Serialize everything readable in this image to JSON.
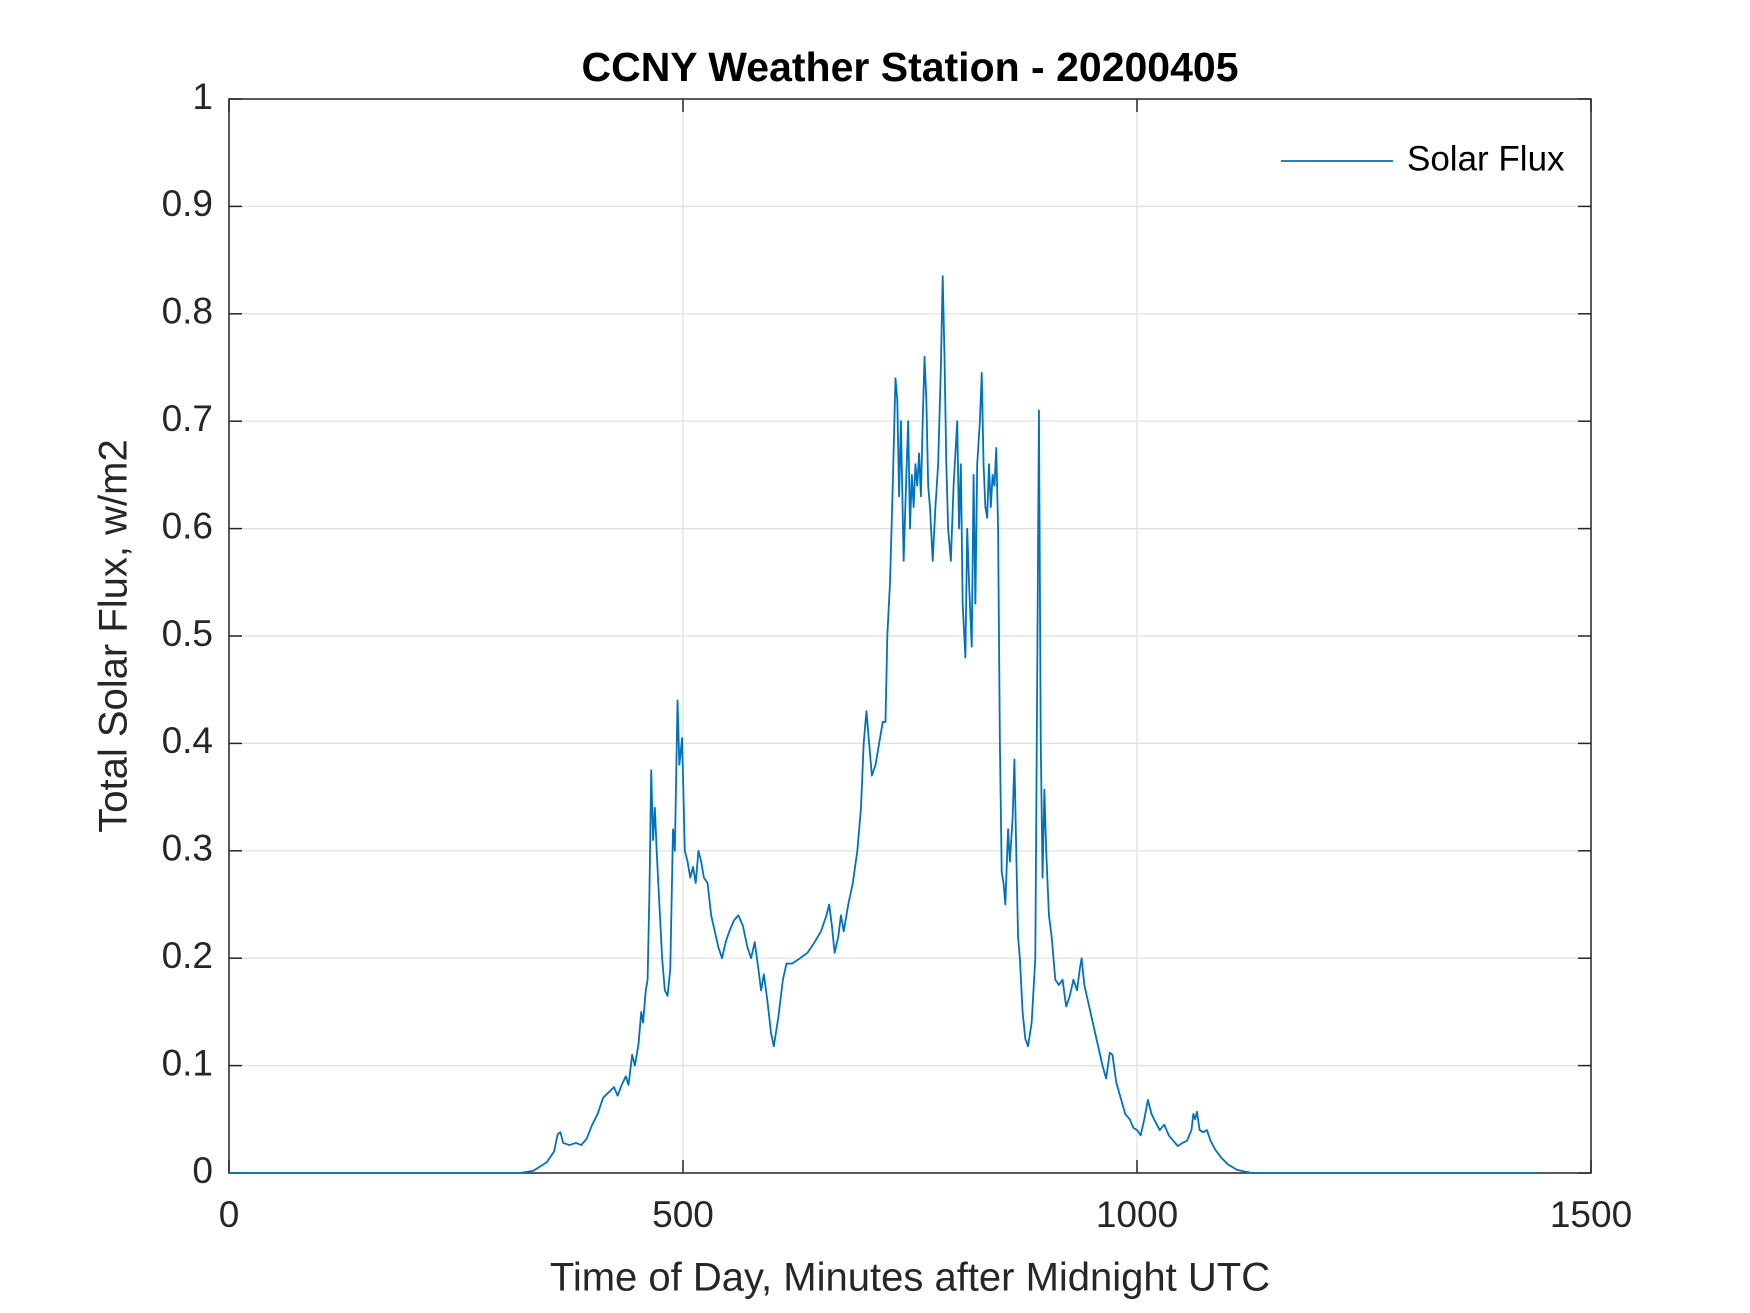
{
  "chart_data": {
    "type": "line",
    "title": "CCNY Weather Station - 20200405",
    "x_label": "Time of Day, Minutes after Midnight UTC",
    "y_label": "Total Solar Flux, w/m2",
    "x": [
      0,
      320,
      335,
      350,
      358,
      362,
      365,
      368,
      375,
      382,
      388,
      394,
      400,
      406,
      412,
      418,
      424,
      428,
      433,
      437,
      440,
      444,
      447,
      451,
      454,
      456,
      459,
      461,
      463,
      465,
      467,
      469,
      471,
      474,
      477,
      480,
      483,
      486,
      489,
      491,
      494,
      496,
      499,
      502,
      505,
      508,
      511,
      514,
      517,
      520,
      523,
      527,
      531,
      535,
      539,
      543,
      547,
      551,
      556,
      561,
      566,
      571,
      575,
      579,
      583,
      586,
      589,
      593,
      597,
      600,
      605,
      610,
      614,
      620,
      629,
      637,
      645,
      652,
      658,
      661,
      664,
      667,
      671,
      674,
      677,
      682,
      687,
      692,
      696,
      699,
      702,
      705,
      708,
      712,
      716,
      720,
      723,
      725,
      728,
      731,
      734,
      736,
      738,
      740,
      743,
      746,
      748,
      750,
      752,
      754,
      756,
      758,
      760,
      762,
      764,
      766,
      768,
      770,
      772,
      775,
      778,
      781,
      784,
      786,
      788,
      790,
      792,
      795,
      798,
      800,
      802,
      804,
      806,
      808,
      811,
      813,
      815,
      818,
      820,
      822,
      824,
      827,
      829,
      831,
      833,
      835,
      837,
      839,
      841,
      843,
      845,
      847,
      849,
      851,
      853,
      855,
      858,
      860,
      863,
      865,
      867,
      869,
      871,
      874,
      877,
      880,
      884,
      888,
      890,
      892,
      894,
      896,
      898,
      900,
      903,
      906,
      910,
      914,
      918,
      922,
      926,
      930,
      934,
      937,
      939,
      942,
      946,
      950,
      954,
      958,
      962,
      966,
      970,
      973,
      977,
      982,
      987,
      992,
      996,
      1000,
      1004,
      1008,
      1012,
      1016,
      1020,
      1025,
      1030,
      1035,
      1040,
      1045,
      1050,
      1055,
      1060,
      1062,
      1064,
      1066,
      1069,
      1073,
      1077,
      1081,
      1086,
      1092,
      1100,
      1110,
      1120,
      1127,
      1440
    ],
    "series": [
      {
        "name": "Solar Flux",
        "color": "#0072bd",
        "values": [
          0,
          0,
          0.002,
          0.01,
          0.02,
          0.036,
          0.038,
          0.028,
          0.026,
          0.028,
          0.026,
          0.032,
          0.045,
          0.055,
          0.07,
          0.075,
          0.08,
          0.072,
          0.083,
          0.09,
          0.082,
          0.11,
          0.1,
          0.12,
          0.15,
          0.14,
          0.17,
          0.18,
          0.26,
          0.375,
          0.31,
          0.34,
          0.3,
          0.25,
          0.2,
          0.17,
          0.165,
          0.19,
          0.32,
          0.3,
          0.44,
          0.38,
          0.405,
          0.3,
          0.29,
          0.275,
          0.285,
          0.27,
          0.3,
          0.29,
          0.275,
          0.27,
          0.24,
          0.225,
          0.21,
          0.2,
          0.215,
          0.225,
          0.235,
          0.24,
          0.23,
          0.21,
          0.2,
          0.215,
          0.19,
          0.17,
          0.185,
          0.16,
          0.13,
          0.118,
          0.145,
          0.18,
          0.195,
          0.195,
          0.2,
          0.205,
          0.215,
          0.225,
          0.24,
          0.25,
          0.23,
          0.205,
          0.22,
          0.24,
          0.225,
          0.25,
          0.27,
          0.3,
          0.34,
          0.4,
          0.43,
          0.4,
          0.37,
          0.38,
          0.4,
          0.42,
          0.42,
          0.5,
          0.55,
          0.64,
          0.74,
          0.72,
          0.63,
          0.7,
          0.57,
          0.65,
          0.7,
          0.6,
          0.65,
          0.62,
          0.66,
          0.64,
          0.67,
          0.63,
          0.7,
          0.76,
          0.72,
          0.64,
          0.62,
          0.57,
          0.62,
          0.66,
          0.75,
          0.835,
          0.76,
          0.66,
          0.6,
          0.57,
          0.64,
          0.67,
          0.7,
          0.6,
          0.66,
          0.53,
          0.48,
          0.6,
          0.55,
          0.49,
          0.65,
          0.53,
          0.66,
          0.7,
          0.745,
          0.66,
          0.62,
          0.61,
          0.66,
          0.62,
          0.65,
          0.64,
          0.675,
          0.6,
          0.4,
          0.28,
          0.27,
          0.25,
          0.32,
          0.29,
          0.33,
          0.385,
          0.3,
          0.22,
          0.2,
          0.15,
          0.125,
          0.118,
          0.14,
          0.2,
          0.45,
          0.71,
          0.4,
          0.275,
          0.357,
          0.3,
          0.24,
          0.22,
          0.18,
          0.175,
          0.18,
          0.155,
          0.165,
          0.18,
          0.17,
          0.19,
          0.2,
          0.175,
          0.16,
          0.145,
          0.13,
          0.115,
          0.1,
          0.088,
          0.112,
          0.11,
          0.085,
          0.07,
          0.055,
          0.05,
          0.042,
          0.04,
          0.035,
          0.05,
          0.068,
          0.055,
          0.048,
          0.04,
          0.045,
          0.035,
          0.03,
          0.025,
          0.028,
          0.03,
          0.04,
          0.055,
          0.05,
          0.057,
          0.04,
          0.038,
          0.04,
          0.03,
          0.022,
          0.015,
          0.008,
          0.003,
          0.001,
          0,
          0
        ]
      }
    ],
    "xlim": [
      0,
      1500
    ],
    "xticks": [
      0,
      500,
      1000,
      1500
    ],
    "ylim": [
      0,
      1
    ],
    "yticks": [
      0,
      0.1,
      0.2,
      0.3,
      0.4,
      0.5,
      0.6,
      0.7,
      0.8,
      0.9,
      1
    ],
    "grid": true,
    "legend": "upper right"
  }
}
